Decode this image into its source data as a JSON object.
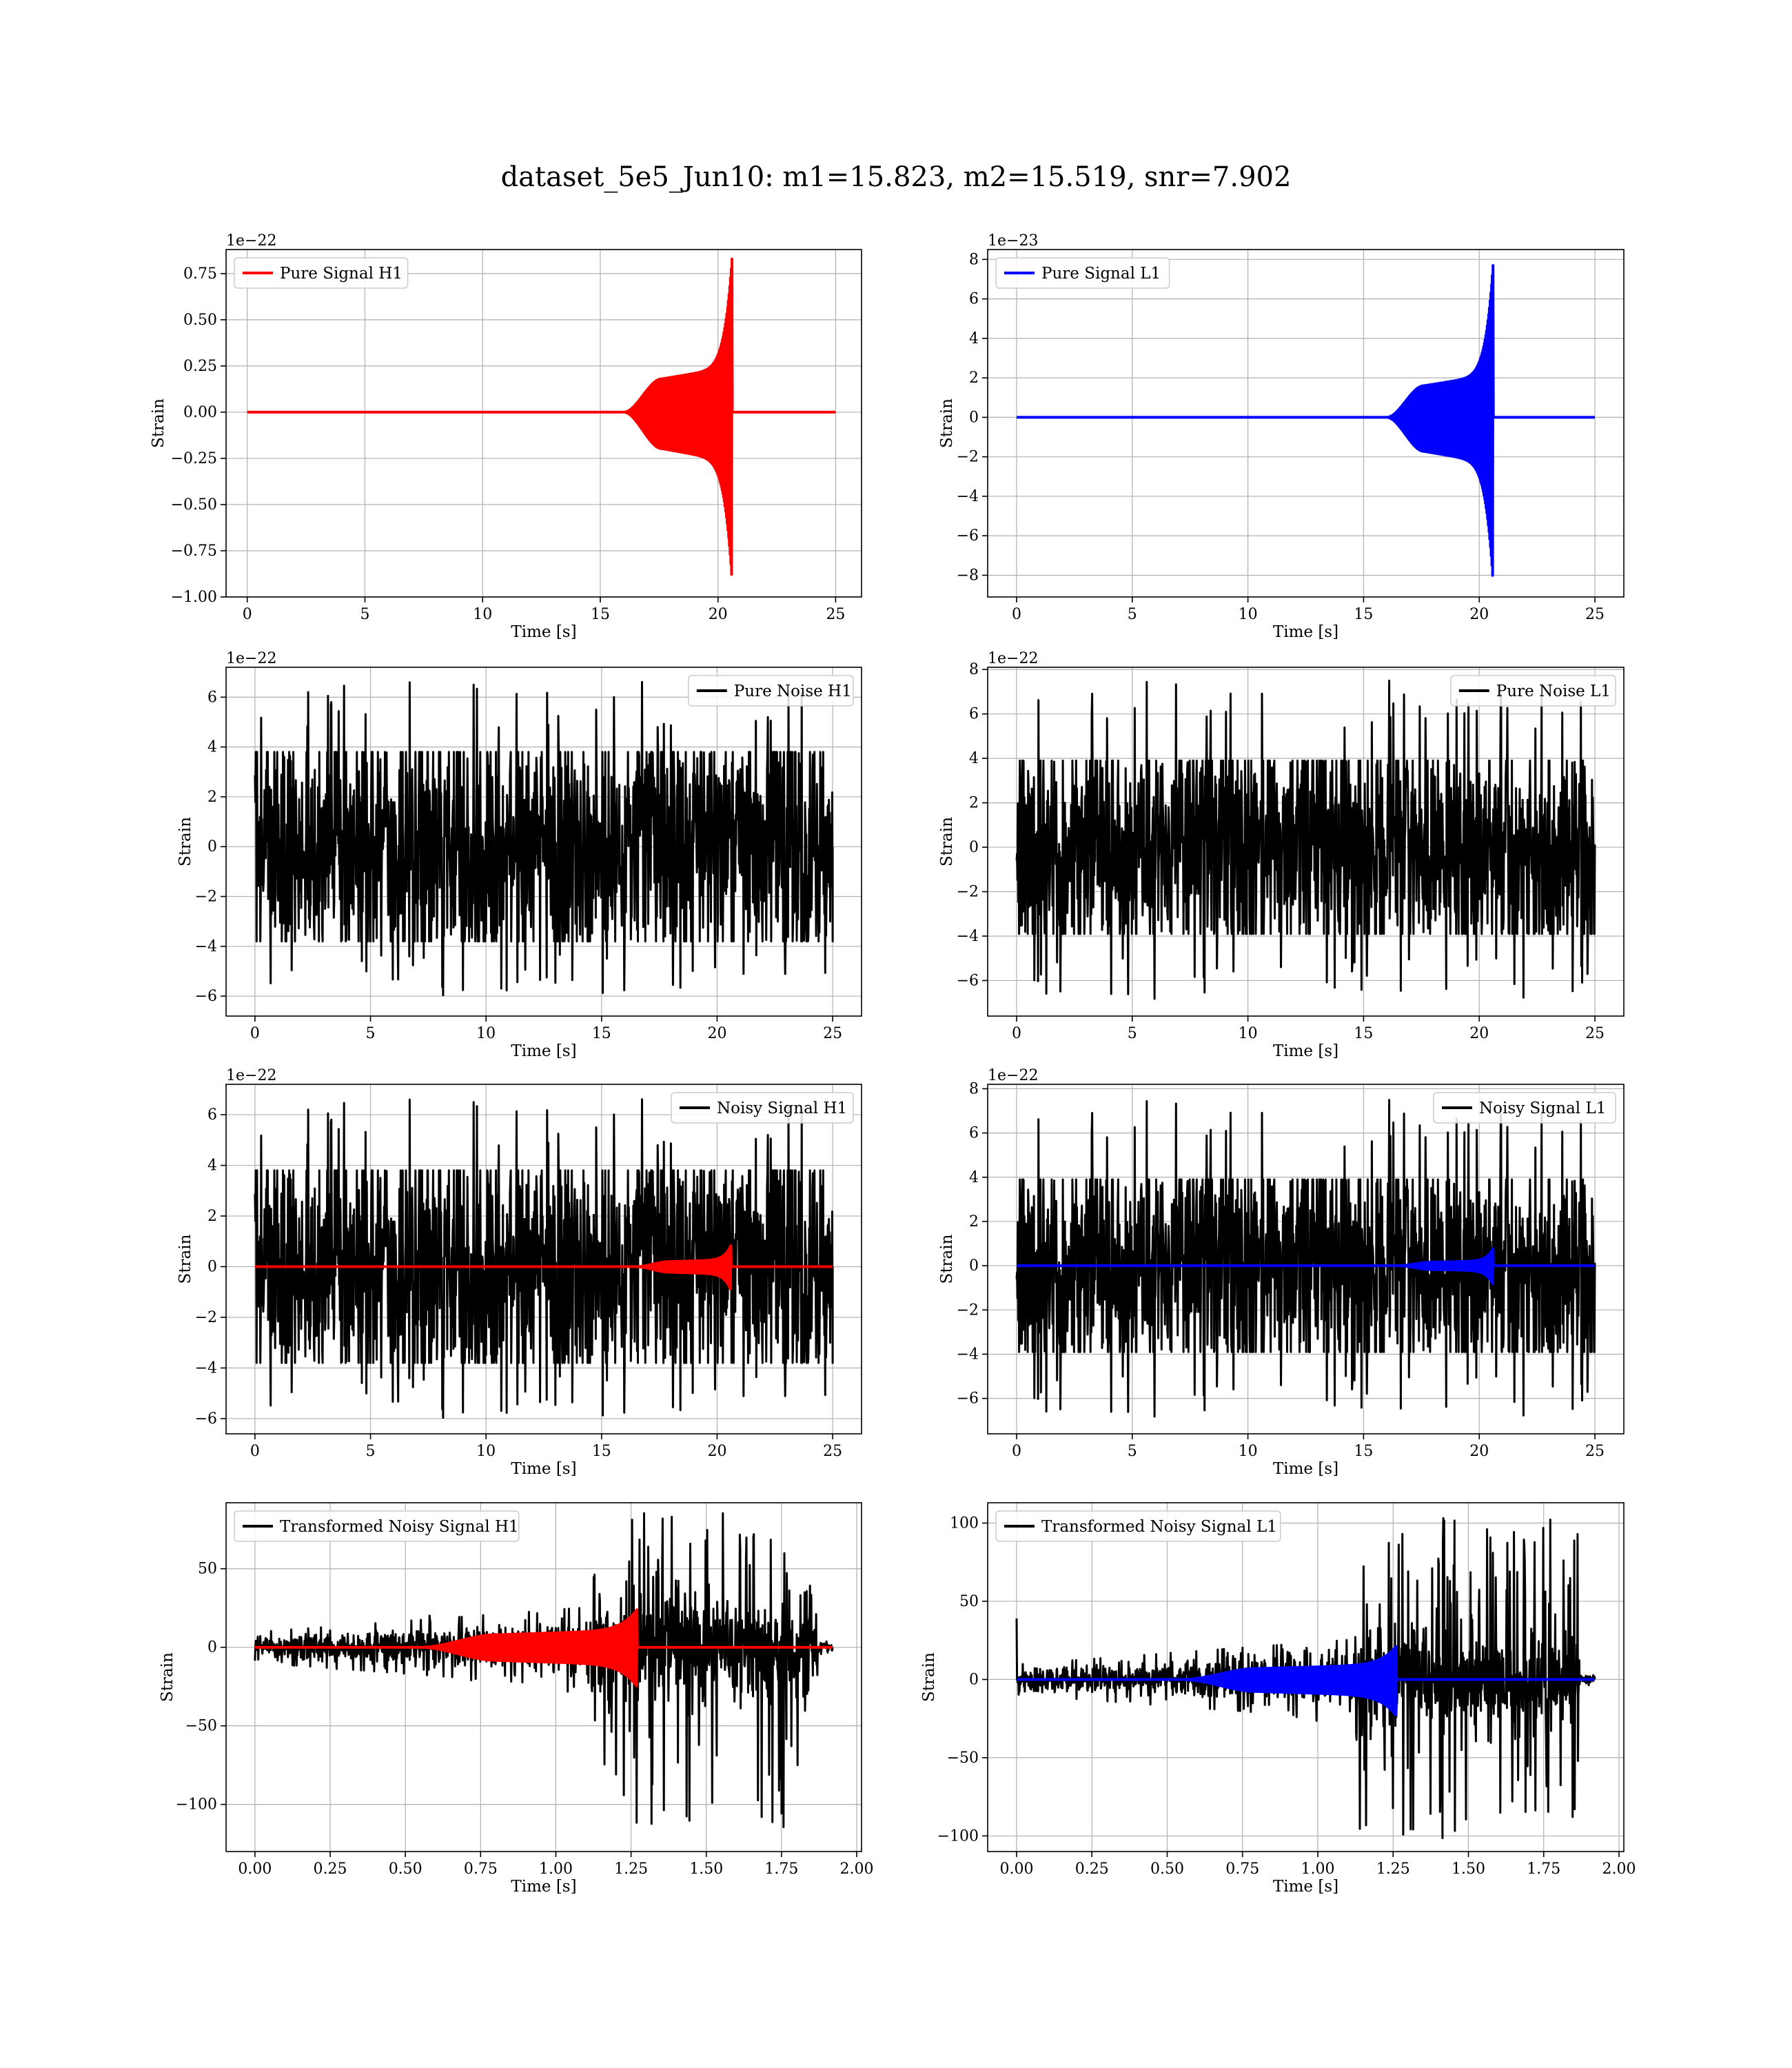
{
  "figure_title": "dataset_5e5_Jun10: m1=15.823, m2=15.519, snr=7.902",
  "colors": {
    "h1_signal": "#ff0000",
    "l1_signal": "#0000ff",
    "noise": "#000000",
    "grid": "#b0b0b0",
    "axes": "#000000"
  },
  "chart_data": [
    {
      "id": "pure-signal-h1",
      "type": "line",
      "xlabel": "Time [s]",
      "ylabel": "Strain",
      "offset_text": "1e−22",
      "xlim": [
        -0.9,
        26.1
      ],
      "ylim": [
        -1.0,
        0.88
      ],
      "xticks": [
        0,
        5,
        10,
        15,
        20,
        25
      ],
      "xtick_labels": [
        "0",
        "5",
        "10",
        "15",
        "20",
        "25"
      ],
      "yticks": [
        -1.0,
        -0.75,
        -0.5,
        -0.25,
        0.0,
        0.25,
        0.5,
        0.75
      ],
      "ytick_labels": [
        "−1.00",
        "−0.75",
        "−0.50",
        "−0.25",
        "0.00",
        "0.25",
        "0.50",
        "0.75"
      ],
      "legend": {
        "placement": "upper left"
      },
      "grid": true,
      "series": [
        {
          "name": "Pure Signal H1",
          "color": "#ff0000",
          "kind": "chirp",
          "x_start": 0,
          "x_end": 25,
          "onset": 16.0,
          "merger": 20.6,
          "plateau": 0.18,
          "peak_pos": 0.84,
          "peak_neg": -0.92
        }
      ]
    },
    {
      "id": "pure-signal-l1",
      "type": "line",
      "xlabel": "Time [s]",
      "ylabel": "Strain",
      "offset_text": "1e−23",
      "xlim": [
        -1.25,
        26.25
      ],
      "ylim": [
        -9.1,
        8.5
      ],
      "xticks": [
        0,
        5,
        10,
        15,
        20,
        25
      ],
      "xtick_labels": [
        "0",
        "5",
        "10",
        "15",
        "20",
        "25"
      ],
      "yticks": [
        -8,
        -6,
        -4,
        -2,
        0,
        2,
        4,
        6,
        8
      ],
      "ytick_labels": [
        "−8",
        "−6",
        "−4",
        "−2",
        "0",
        "2",
        "4",
        "6",
        "8"
      ],
      "legend": {
        "placement": "upper left"
      },
      "grid": true,
      "series": [
        {
          "name": "Pure Signal L1",
          "color": "#0000ff",
          "kind": "chirp",
          "x_start": 0,
          "x_end": 25,
          "onset": 16.0,
          "merger": 20.6,
          "plateau": 1.6,
          "peak_pos": 7.8,
          "peak_neg": -8.4
        }
      ]
    },
    {
      "id": "pure-noise-h1",
      "type": "line",
      "xlabel": "Time [s]",
      "ylabel": "Strain",
      "offset_text": "1e−22",
      "xlim": [
        -1.25,
        26.25
      ],
      "ylim": [
        -6.8,
        7.2
      ],
      "xticks": [
        0,
        5,
        10,
        15,
        20,
        25
      ],
      "xtick_labels": [
        "0",
        "5",
        "10",
        "15",
        "20",
        "25"
      ],
      "yticks": [
        -6,
        -4,
        -2,
        0,
        2,
        4,
        6
      ],
      "ytick_labels": [
        "−6",
        "−4",
        "−2",
        "0",
        "2",
        "4",
        "6"
      ],
      "legend": {
        "placement": "upper right"
      },
      "grid": true,
      "series": [
        {
          "name": "Pure Noise H1",
          "color": "#000000",
          "kind": "noise",
          "x_start": 0,
          "x_end": 25,
          "core": 3.8,
          "max": 6.7,
          "min": -6.0,
          "seed": 11
        }
      ]
    },
    {
      "id": "pure-noise-l1",
      "type": "line",
      "xlabel": "Time [s]",
      "ylabel": "Strain",
      "offset_text": "1e−22",
      "xlim": [
        -1.25,
        26.25
      ],
      "ylim": [
        -7.6,
        8.1
      ],
      "xticks": [
        0,
        5,
        10,
        15,
        20,
        25
      ],
      "xtick_labels": [
        "0",
        "5",
        "10",
        "15",
        "20",
        "25"
      ],
      "yticks": [
        -6,
        -4,
        -2,
        0,
        2,
        4,
        6,
        8
      ],
      "ytick_labels": [
        "−6",
        "−4",
        "−2",
        "0",
        "2",
        "4",
        "6",
        "8"
      ],
      "legend": {
        "placement": "upper right"
      },
      "grid": true,
      "series": [
        {
          "name": "Pure Noise L1",
          "color": "#000000",
          "kind": "noise",
          "x_start": 0,
          "x_end": 25,
          "core": 3.9,
          "max": 7.5,
          "min": -6.9,
          "seed": 23
        }
      ]
    },
    {
      "id": "noisy-signal-h1",
      "type": "line",
      "xlabel": "Time [s]",
      "ylabel": "Strain",
      "offset_text": "1e−22",
      "xlim": [
        -1.25,
        26.25
      ],
      "ylim": [
        -6.6,
        7.2
      ],
      "xticks": [
        0,
        5,
        10,
        15,
        20,
        25
      ],
      "xtick_labels": [
        "0",
        "5",
        "10",
        "15",
        "20",
        "25"
      ],
      "yticks": [
        -6,
        -4,
        -2,
        0,
        2,
        4,
        6
      ],
      "ytick_labels": [
        "−6",
        "−4",
        "−2",
        "0",
        "2",
        "4",
        "6"
      ],
      "legend": {
        "placement": "upper right"
      },
      "grid": true,
      "series": [
        {
          "name": "Noisy Signal H1",
          "color": "#000000",
          "kind": "noise",
          "x_start": 0,
          "x_end": 25,
          "core": 3.8,
          "max": 6.7,
          "min": -6.0,
          "seed": 11
        },
        {
          "color": "#ff0000",
          "kind": "chirp",
          "x_start": 0,
          "x_end": 25,
          "onset": 16.5,
          "merger": 20.6,
          "plateau": 0.2,
          "peak_pos": 0.84,
          "peak_neg": -0.92
        }
      ]
    },
    {
      "id": "noisy-signal-l1",
      "type": "line",
      "xlabel": "Time [s]",
      "ylabel": "Strain",
      "offset_text": "1e−22",
      "xlim": [
        -1.25,
        26.25
      ],
      "ylim": [
        -7.6,
        8.2
      ],
      "xticks": [
        0,
        5,
        10,
        15,
        20,
        25
      ],
      "xtick_labels": [
        "0",
        "5",
        "10",
        "15",
        "20",
        "25"
      ],
      "yticks": [
        -6,
        -4,
        -2,
        0,
        2,
        4,
        6,
        8
      ],
      "ytick_labels": [
        "−6",
        "−4",
        "−2",
        "0",
        "2",
        "4",
        "6",
        "8"
      ],
      "legend": {
        "placement": "upper right"
      },
      "grid": true,
      "series": [
        {
          "name": "Noisy Signal L1",
          "color": "#000000",
          "kind": "noise",
          "x_start": 0,
          "x_end": 25,
          "core": 3.9,
          "max": 7.5,
          "min": -6.9,
          "seed": 23
        },
        {
          "color": "#0000ff",
          "kind": "chirp",
          "x_start": 0,
          "x_end": 25,
          "onset": 16.5,
          "merger": 20.6,
          "plateau": 0.16,
          "peak_pos": 0.78,
          "peak_neg": -0.84
        }
      ]
    },
    {
      "id": "transformed-noisy-signal-h1",
      "type": "line",
      "xlabel": "Time [s]",
      "ylabel": "Strain",
      "offset_text": "",
      "xlim": [
        -0.096,
        2.016
      ],
      "ylim": [
        -130,
        92
      ],
      "xticks": [
        0.0,
        0.25,
        0.5,
        0.75,
        1.0,
        1.25,
        1.5,
        1.75,
        2.0
      ],
      "xtick_labels": [
        "0.00",
        "0.25",
        "0.50",
        "0.75",
        "1.00",
        "1.25",
        "1.50",
        "1.75",
        "2.00"
      ],
      "yticks": [
        -100,
        -50,
        0,
        50
      ],
      "ytick_labels": [
        "−100",
        "−50",
        "0",
        "50"
      ],
      "legend": {
        "placement": "upper left"
      },
      "grid": true,
      "series": [
        {
          "name": "Transformed Noisy Signal H1",
          "color": "#000000",
          "kind": "transformed",
          "x_start": 0,
          "x_end": 1.92,
          "seed": 5,
          "jump": 1.12,
          "cut": 1.87,
          "max": 86,
          "min": -117
        },
        {
          "color": "#ff0000",
          "kind": "chirp",
          "x_start": 0,
          "x_end": 1.92,
          "onset": 0.55,
          "merger": 1.27,
          "plateau": 8,
          "peak_pos": 24,
          "peak_neg": -25
        }
      ]
    },
    {
      "id": "transformed-noisy-signal-l1",
      "type": "line",
      "xlabel": "Time [s]",
      "ylabel": "Strain",
      "offset_text": "",
      "xlim": [
        -0.096,
        2.016
      ],
      "ylim": [
        -110,
        113
      ],
      "xticks": [
        0.0,
        0.25,
        0.5,
        0.75,
        1.0,
        1.25,
        1.5,
        1.75,
        2.0
      ],
      "xtick_labels": [
        "0.00",
        "0.25",
        "0.50",
        "0.75",
        "1.00",
        "1.25",
        "1.50",
        "1.75",
        "2.00"
      ],
      "yticks": [
        -100,
        -50,
        0,
        50,
        100
      ],
      "ytick_labels": [
        "−100",
        "−50",
        "0",
        "50",
        "100"
      ],
      "legend": {
        "placement": "upper left"
      },
      "grid": true,
      "series": [
        {
          "name": "Transformed Noisy Signal L1",
          "color": "#000000",
          "kind": "transformed",
          "x_start": 0,
          "x_end": 1.92,
          "seed": 9,
          "jump": 1.12,
          "cut": 1.87,
          "max": 105,
          "min": -103,
          "spike_at_start": 39
        },
        {
          "color": "#0000ff",
          "kind": "chirp",
          "x_start": 0,
          "x_end": 1.92,
          "onset": 0.55,
          "merger": 1.26,
          "plateau": 7,
          "peak_pos": 21,
          "peak_neg": -23
        }
      ]
    }
  ]
}
